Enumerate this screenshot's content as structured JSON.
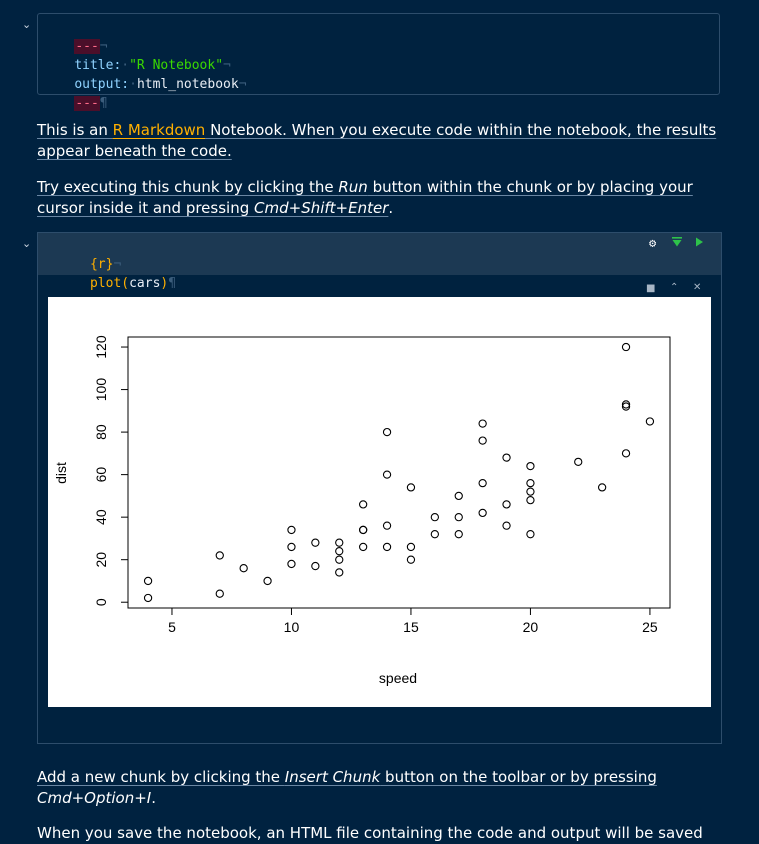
{
  "yaml": {
    "dashes": "---",
    "title_key": "title:",
    "title_value": "\"R Notebook\"",
    "output_key": "output:",
    "output_value": "html_notebook"
  },
  "para1": {
    "before": "This is an ",
    "link": "R Markdown",
    "after": " Notebook. When you execute code within the notebook, the results appear beneath the code."
  },
  "para2": {
    "t1": "Try executing this chunk by clicking the ",
    "run": "Run",
    "t2": " button within the chunk or by placing your cursor inside it and pressing ",
    "shortcut": "Cmd+Shift+Enter",
    "t3": "."
  },
  "chunk": {
    "header": "{r}",
    "code_fn": "plot(",
    "code_arg": "cars",
    "code_close": ")",
    "pilcrow": "¶",
    "not": "¬"
  },
  "para3": {
    "t1": "Add a new chunk by clicking the ",
    "insert": "Insert Chunk",
    "t2": " button on the toolbar or by pressing ",
    "shortcut": "Cmd+Option+I",
    "t3": "."
  },
  "para4": {
    "text": "When you save the notebook, an HTML file containing the code and output will be saved"
  },
  "colors": {
    "background": "#002240",
    "link": "#ffb000",
    "string": "#3ad900",
    "run": "#2ec24a"
  },
  "chart_data": {
    "type": "scatter",
    "xlabel": "speed",
    "ylabel": "dist",
    "xlim": [
      4,
      25
    ],
    "ylim": [
      2,
      120
    ],
    "xticks": [
      5,
      10,
      15,
      20,
      25
    ],
    "yticks": [
      0,
      20,
      40,
      60,
      80,
      100,
      120
    ],
    "x": [
      4,
      4,
      7,
      7,
      8,
      9,
      10,
      10,
      10,
      11,
      11,
      12,
      12,
      12,
      12,
      13,
      13,
      13,
      13,
      14,
      14,
      14,
      14,
      15,
      15,
      15,
      16,
      16,
      17,
      17,
      17,
      18,
      18,
      18,
      18,
      19,
      19,
      19,
      20,
      20,
      20,
      20,
      20,
      22,
      23,
      24,
      24,
      24,
      24,
      25
    ],
    "y": [
      2,
      10,
      4,
      22,
      16,
      10,
      18,
      26,
      34,
      17,
      28,
      14,
      20,
      24,
      28,
      26,
      34,
      34,
      46,
      26,
      36,
      60,
      80,
      20,
      26,
      54,
      32,
      40,
      32,
      40,
      50,
      42,
      56,
      76,
      84,
      36,
      46,
      68,
      32,
      48,
      52,
      56,
      64,
      66,
      54,
      70,
      92,
      93,
      120,
      85
    ]
  }
}
